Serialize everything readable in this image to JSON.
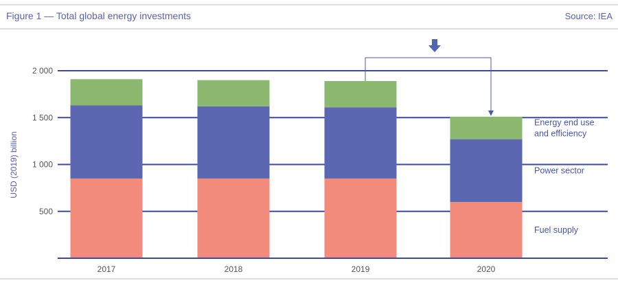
{
  "figure": {
    "title": "Figure 1 — Total global energy investments",
    "source": "Source: IEA"
  },
  "colors": {
    "header_text": "#5a62b0",
    "axis_text": "#555555",
    "ylabel_text": "#5a62b0",
    "legend_text": "#4a55a8",
    "gridline": "#3d4a9c",
    "rule": "#b8bdd8",
    "arrow": "#5464b4",
    "connector": "#4a5aa8",
    "fuel_supply": "#f28b7b",
    "power_sector": "#5b67b1",
    "end_use": "#8db86f"
  },
  "chart_data": {
    "type": "bar",
    "stacked": true,
    "categories": [
      "2017",
      "2018",
      "2019",
      "2020"
    ],
    "series": [
      {
        "name": "Fuel supply",
        "values": [
          850,
          850,
          850,
          600
        ],
        "color": "#f28b7b"
      },
      {
        "name": "Power sector",
        "values": [
          780,
          770,
          760,
          670
        ],
        "color": "#5b67b1"
      },
      {
        "name": "Energy end use and efficiency",
        "values": [
          280,
          280,
          280,
          240
        ],
        "color": "#8db86f"
      }
    ],
    "ylabel": "USD (2019) billion",
    "xlabel": "",
    "ylim": [
      0,
      2000
    ],
    "yticks": [
      500,
      1000,
      1500,
      2000
    ],
    "ytick_labels": [
      "500",
      "1 000",
      "1 500",
      "2 000"
    ],
    "grid": true,
    "legend_position": "right, labels beside the 2020 bar segments",
    "legend_labels": [
      [
        "Energy end use",
        "and efficiency"
      ],
      [
        "Power sector"
      ],
      [
        "Fuel supply"
      ]
    ],
    "annotation": "downward arrow with connector from the 2019 bar to the 2020 bar"
  }
}
